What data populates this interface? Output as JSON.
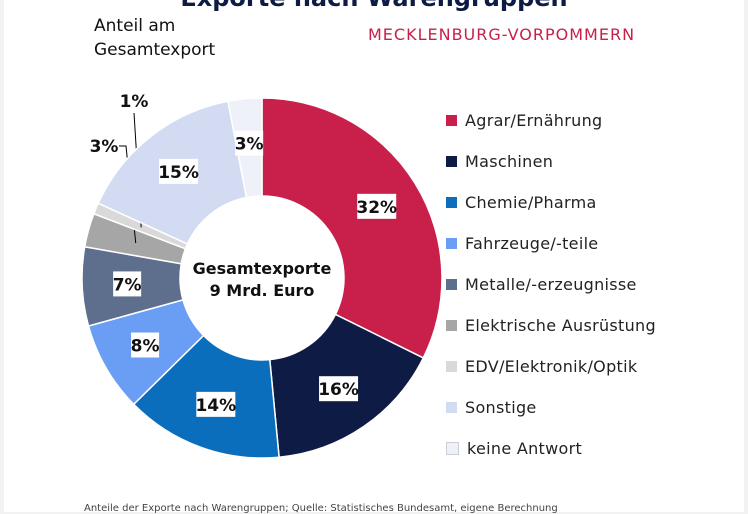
{
  "header": {
    "title": "Exporte nach Warengruppen",
    "subtitle_line1": "Anteil am",
    "subtitle_line2": "Gesamtexport",
    "region": "MECKLENBURG-VORPOMMERN"
  },
  "footnote": "Anteile der Exporte nach Warengruppen; Quelle: Statistisches Bundesamt, eigene Berechnung",
  "chart_data": {
    "type": "pie",
    "title": "Exporte nach Warengruppen",
    "center_label": [
      "Gesamtexporte",
      "9 Mrd. Euro"
    ],
    "legend_position": "right",
    "slices": [
      {
        "name": "Agrar/Ernährung",
        "value": 32,
        "label": "32%",
        "color": "#c8204a"
      },
      {
        "name": "Maschinen",
        "value": 16,
        "label": "16%",
        "color": "#0d1b45"
      },
      {
        "name": "Chemie/Pharma",
        "value": 14,
        "label": "14%",
        "color": "#0a6ebd"
      },
      {
        "name": "Fahrzeuge/-teile",
        "value": 8,
        "label": "8%",
        "color": "#6a9ef5"
      },
      {
        "name": "Metalle/-erzeugnisse",
        "value": 7,
        "label": "7%",
        "color": "#5d6f8d"
      },
      {
        "name": "Elektrische Ausrüstung",
        "value": 3,
        "label": "3%",
        "color": "#a6a6a6"
      },
      {
        "name": "EDV/Elektronik/Optik",
        "value": 1,
        "label": "1%",
        "color": "#d9d9d9"
      },
      {
        "name": "Sonstige",
        "value": 15,
        "label": "15%",
        "color": "#d3dbf2"
      },
      {
        "name": "keine Antwort",
        "value": 3,
        "label": "3%",
        "color": "#eef1f8"
      }
    ]
  }
}
